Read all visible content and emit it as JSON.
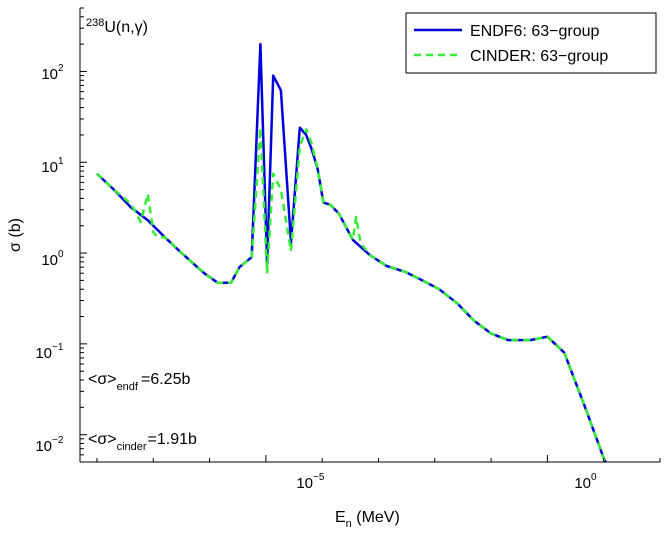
{
  "chart_data": {
    "type": "line",
    "x_scale": "log",
    "y_scale": "log",
    "xlim": [
      5e-09,
      100
    ],
    "ylim": [
      0.005,
      500
    ],
    "xlabel": "E",
    "xlabel_sub": "n",
    "xlabel_unit": " (MeV)",
    "ylabel": "σ (b)",
    "x_ticks": [
      {
        "value": 1e-05,
        "base": "10",
        "exp": "−5"
      },
      {
        "value": 1,
        "base": "10",
        "exp": "0"
      }
    ],
    "y_ticks": [
      {
        "value": 0.01,
        "base": "10",
        "exp": "−2"
      },
      {
        "value": 0.1,
        "base": "10",
        "exp": "−1"
      },
      {
        "value": 1,
        "base": "10",
        "exp": "0"
      },
      {
        "value": 10,
        "base": "10",
        "exp": "1"
      },
      {
        "value": 100,
        "base": "10",
        "exp": "2"
      }
    ],
    "reaction_label": {
      "mass": "238",
      "text": "U(n,γ)"
    },
    "annotations": [
      {
        "prefix": "<σ>",
        "sub": "endf",
        "value": "=6.25b"
      },
      {
        "prefix": "<σ>",
        "sub": "cinder",
        "value": "=1.91b"
      }
    ],
    "legend_position": "top-right",
    "series": [
      {
        "name": "ENDF6: 63−group",
        "color": "#0000dd",
        "dash": "solid",
        "x": [
          1e-08,
          2e-08,
          4e-08,
          8e-08,
          1.6e-07,
          3.2e-07,
          5e-07,
          8e-07,
          1.4e-06,
          2.4e-06,
          3.4e-06,
          5.6e-06,
          8e-06,
          1.05e-05,
          1.35e-05,
          1.85e-05,
          2.8e-05,
          4e-05,
          5.2e-05,
          6.5e-05,
          8.3e-05,
          0.000105,
          0.00014,
          0.0002,
          0.00035,
          0.0007,
          0.0014,
          0.003,
          0.006,
          0.012,
          0.025,
          0.05,
          0.1,
          0.2,
          0.5,
          1.0,
          2.0,
          5.0,
          10.0,
          20.0
        ],
        "y": [
          7.5,
          5.0,
          3.2,
          2.3,
          1.5,
          1.0,
          0.78,
          0.6,
          0.47,
          0.47,
          0.7,
          0.9,
          200,
          0.75,
          90,
          62,
          1.3,
          24,
          20,
          14,
          8.5,
          3.6,
          3.4,
          2.7,
          1.4,
          0.95,
          0.72,
          0.62,
          0.5,
          0.4,
          0.28,
          0.18,
          0.13,
          0.11,
          0.11,
          0.12,
          0.08,
          0.018,
          0.0055,
          0.0025
        ]
      },
      {
        "name": "CINDER: 63−group",
        "color": "#33ee33",
        "dash": "dashed",
        "x": [
          1e-08,
          2e-08,
          4e-08,
          6e-08,
          8e-08,
          1e-07,
          1.2e-07,
          1.6e-07,
          3.2e-07,
          5e-07,
          8e-07,
          1.4e-06,
          2.4e-06,
          3.4e-06,
          5.6e-06,
          8e-06,
          1.05e-05,
          1.35e-05,
          1.85e-05,
          2.8e-05,
          4e-05,
          5.2e-05,
          6.5e-05,
          8.3e-05,
          0.000105,
          0.00014,
          0.0002,
          0.00035,
          0.0004,
          0.00048,
          0.0007,
          0.0014,
          0.003,
          0.006,
          0.012,
          0.025,
          0.05,
          0.1,
          0.2,
          0.5,
          1.0,
          2.0,
          5.0,
          10.0,
          20.0
        ],
        "y": [
          7.5,
          5.0,
          3.5,
          2.2,
          4.5,
          1.7,
          1.5,
          1.5,
          1.0,
          0.78,
          0.6,
          0.47,
          0.47,
          0.7,
          0.9,
          24,
          0.6,
          7.5,
          5.0,
          1.05,
          15,
          23,
          16,
          8.5,
          3.6,
          3.4,
          2.7,
          1.4,
          2.5,
          1.3,
          0.95,
          0.72,
          0.62,
          0.5,
          0.4,
          0.28,
          0.18,
          0.13,
          0.11,
          0.11,
          0.12,
          0.08,
          0.018,
          0.0055,
          0.0025
        ]
      }
    ]
  }
}
